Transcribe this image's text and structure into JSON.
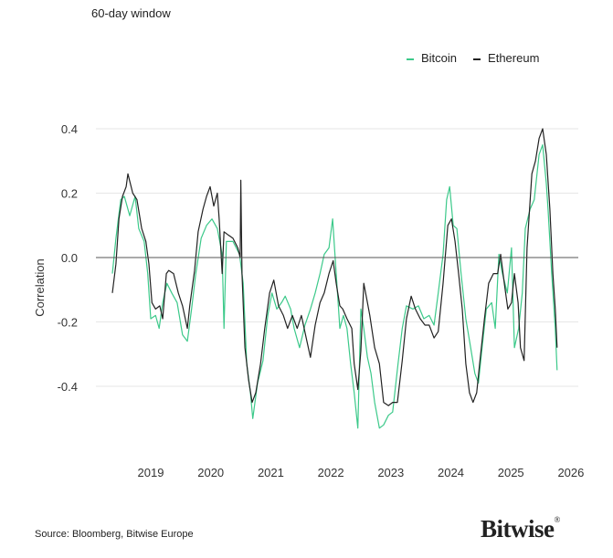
{
  "subtitle": "60-day window",
  "source": "Source: Bloomberg, Bitwise Europe",
  "logo": "Bitwise",
  "chart_data": {
    "type": "line",
    "title": "",
    "xlabel": "",
    "ylabel": "Correlation",
    "xlim": [
      2018.0,
      2026.0
    ],
    "ylim": [
      -0.57,
      0.42
    ],
    "grid": "horizontal",
    "legend_position": "top-right",
    "x_unit": "year",
    "yticks": [
      {
        "v": 0.4,
        "label": "0.4"
      },
      {
        "v": 0.2,
        "label": "0.2"
      },
      {
        "v": 0,
        "label": "0.0"
      },
      {
        "v": -0.2,
        "label": "-0.2"
      },
      {
        "v": -0.4,
        "label": "-0.4"
      }
    ],
    "xticks": [
      {
        "v": 2019,
        "label": "2019"
      },
      {
        "v": 2020,
        "label": "2020"
      },
      {
        "v": 2021,
        "label": "2021"
      },
      {
        "v": 2022,
        "label": "2022"
      },
      {
        "v": 2023,
        "label": "2023"
      },
      {
        "v": 2024,
        "label": "2024"
      },
      {
        "v": 2025,
        "label": "2025"
      },
      {
        "v": 2026,
        "label": "2026"
      }
    ],
    "series": [
      {
        "name": "Bitcoin",
        "color": "#3cc98a",
        "points": [
          [
            2018.36,
            -0.05
          ],
          [
            2018.42,
            0.06
          ],
          [
            2018.5,
            0.18
          ],
          [
            2018.56,
            0.19
          ],
          [
            2018.65,
            0.13
          ],
          [
            2018.74,
            0.19
          ],
          [
            2018.8,
            0.09
          ],
          [
            2018.89,
            0.05
          ],
          [
            2018.95,
            -0.05
          ],
          [
            2019.0,
            -0.19
          ],
          [
            2019.08,
            -0.18
          ],
          [
            2019.14,
            -0.22
          ],
          [
            2019.2,
            -0.14
          ],
          [
            2019.27,
            -0.08
          ],
          [
            2019.35,
            -0.11
          ],
          [
            2019.44,
            -0.14
          ],
          [
            2019.53,
            -0.24
          ],
          [
            2019.61,
            -0.26
          ],
          [
            2019.68,
            -0.16
          ],
          [
            2019.75,
            -0.05
          ],
          [
            2019.84,
            0.06
          ],
          [
            2019.93,
            0.1
          ],
          [
            2020.02,
            0.12
          ],
          [
            2020.11,
            0.09
          ],
          [
            2020.19,
            0.01
          ],
          [
            2020.22,
            -0.22
          ],
          [
            2020.26,
            0.05
          ],
          [
            2020.37,
            0.05
          ],
          [
            2020.48,
            0.01
          ],
          [
            2020.54,
            -0.08
          ],
          [
            2020.6,
            -0.33
          ],
          [
            2020.66,
            -0.42
          ],
          [
            2020.7,
            -0.5
          ],
          [
            2020.78,
            -0.39
          ],
          [
            2020.87,
            -0.32
          ],
          [
            2020.95,
            -0.18
          ],
          [
            2021.02,
            -0.11
          ],
          [
            2021.1,
            -0.16
          ],
          [
            2021.18,
            -0.14
          ],
          [
            2021.24,
            -0.12
          ],
          [
            2021.33,
            -0.16
          ],
          [
            2021.39,
            -0.22
          ],
          [
            2021.48,
            -0.28
          ],
          [
            2021.57,
            -0.21
          ],
          [
            2021.66,
            -0.16
          ],
          [
            2021.74,
            -0.11
          ],
          [
            2021.82,
            -0.05
          ],
          [
            2021.89,
            0.01
          ],
          [
            2021.97,
            0.03
          ],
          [
            2022.03,
            0.12
          ],
          [
            2022.09,
            -0.05
          ],
          [
            2022.15,
            -0.22
          ],
          [
            2022.21,
            -0.18
          ],
          [
            2022.27,
            -0.22
          ],
          [
            2022.33,
            -0.33
          ],
          [
            2022.39,
            -0.42
          ],
          [
            2022.45,
            -0.53
          ],
          [
            2022.5,
            -0.16
          ],
          [
            2022.55,
            -0.22
          ],
          [
            2022.61,
            -0.31
          ],
          [
            2022.67,
            -0.36
          ],
          [
            2022.73,
            -0.45
          ],
          [
            2022.81,
            -0.53
          ],
          [
            2022.88,
            -0.52
          ],
          [
            2022.96,
            -0.49
          ],
          [
            2023.03,
            -0.48
          ],
          [
            2023.12,
            -0.33
          ],
          [
            2023.19,
            -0.22
          ],
          [
            2023.26,
            -0.15
          ],
          [
            2023.37,
            -0.16
          ],
          [
            2023.46,
            -0.15
          ],
          [
            2023.55,
            -0.19
          ],
          [
            2023.64,
            -0.18
          ],
          [
            2023.72,
            -0.21
          ],
          [
            2023.79,
            -0.11
          ],
          [
            2023.87,
            0.01
          ],
          [
            2023.93,
            0.18
          ],
          [
            2023.98,
            0.22
          ],
          [
            2024.04,
            0.1
          ],
          [
            2024.1,
            0.09
          ],
          [
            2024.17,
            -0.05
          ],
          [
            2024.25,
            -0.19
          ],
          [
            2024.33,
            -0.28
          ],
          [
            2024.4,
            -0.36
          ],
          [
            2024.46,
            -0.39
          ],
          [
            2024.52,
            -0.28
          ],
          [
            2024.59,
            -0.16
          ],
          [
            2024.68,
            -0.14
          ],
          [
            2024.74,
            -0.22
          ],
          [
            2024.8,
            0.01
          ],
          [
            2024.86,
            -0.05
          ],
          [
            2024.94,
            -0.11
          ],
          [
            2025.01,
            0.03
          ],
          [
            2025.06,
            -0.28
          ],
          [
            2025.13,
            -0.22
          ],
          [
            2025.19,
            -0.11
          ],
          [
            2025.24,
            0.09
          ],
          [
            2025.32,
            0.15
          ],
          [
            2025.39,
            0.18
          ],
          [
            2025.47,
            0.32
          ],
          [
            2025.53,
            0.35
          ],
          [
            2025.59,
            0.23
          ],
          [
            2025.62,
            0.15
          ],
          [
            2025.68,
            -0.05
          ],
          [
            2025.74,
            -0.22
          ],
          [
            2025.77,
            -0.35
          ]
        ]
      },
      {
        "name": "Ethereum",
        "color": "#222222",
        "points": [
          [
            2018.36,
            -0.11
          ],
          [
            2018.42,
            -0.02
          ],
          [
            2018.47,
            0.12
          ],
          [
            2018.53,
            0.19
          ],
          [
            2018.59,
            0.22
          ],
          [
            2018.62,
            0.26
          ],
          [
            2018.7,
            0.2
          ],
          [
            2018.77,
            0.18
          ],
          [
            2018.85,
            0.09
          ],
          [
            2018.92,
            0.05
          ],
          [
            2018.97,
            -0.02
          ],
          [
            2019.02,
            -0.14
          ],
          [
            2019.08,
            -0.16
          ],
          [
            2019.15,
            -0.15
          ],
          [
            2019.2,
            -0.19
          ],
          [
            2019.26,
            -0.05
          ],
          [
            2019.3,
            -0.04
          ],
          [
            2019.38,
            -0.05
          ],
          [
            2019.46,
            -0.11
          ],
          [
            2019.53,
            -0.15
          ],
          [
            2019.61,
            -0.22
          ],
          [
            2019.65,
            -0.15
          ],
          [
            2019.73,
            -0.04
          ],
          [
            2019.79,
            0.08
          ],
          [
            2019.87,
            0.15
          ],
          [
            2019.93,
            0.19
          ],
          [
            2019.99,
            0.22
          ],
          [
            2020.05,
            0.16
          ],
          [
            2020.11,
            0.2
          ],
          [
            2020.14,
            0.12
          ],
          [
            2020.19,
            -0.05
          ],
          [
            2020.22,
            0.08
          ],
          [
            2020.29,
            0.07
          ],
          [
            2020.37,
            0.06
          ],
          [
            2020.45,
            0.03
          ],
          [
            2020.49,
            0.0
          ],
          [
            2020.5,
            0.24
          ],
          [
            2020.52,
            -0.05
          ],
          [
            2020.57,
            -0.28
          ],
          [
            2020.63,
            -0.38
          ],
          [
            2020.69,
            -0.45
          ],
          [
            2020.75,
            -0.42
          ],
          [
            2020.83,
            -0.33
          ],
          [
            2020.9,
            -0.22
          ],
          [
            2020.98,
            -0.11
          ],
          [
            2021.05,
            -0.07
          ],
          [
            2021.13,
            -0.15
          ],
          [
            2021.21,
            -0.18
          ],
          [
            2021.28,
            -0.22
          ],
          [
            2021.36,
            -0.18
          ],
          [
            2021.44,
            -0.22
          ],
          [
            2021.51,
            -0.18
          ],
          [
            2021.59,
            -0.25
          ],
          [
            2021.66,
            -0.31
          ],
          [
            2021.74,
            -0.21
          ],
          [
            2021.82,
            -0.14
          ],
          [
            2021.89,
            -0.11
          ],
          [
            2021.97,
            -0.05
          ],
          [
            2022.04,
            -0.01
          ],
          [
            2022.09,
            -0.08
          ],
          [
            2022.15,
            -0.15
          ],
          [
            2022.2,
            -0.16
          ],
          [
            2022.27,
            -0.19
          ],
          [
            2022.35,
            -0.22
          ],
          [
            2022.39,
            -0.33
          ],
          [
            2022.45,
            -0.41
          ],
          [
            2022.5,
            -0.29
          ],
          [
            2022.55,
            -0.08
          ],
          [
            2022.61,
            -0.14
          ],
          [
            2022.65,
            -0.18
          ],
          [
            2022.73,
            -0.28
          ],
          [
            2022.81,
            -0.33
          ],
          [
            2022.88,
            -0.45
          ],
          [
            2022.96,
            -0.46
          ],
          [
            2023.03,
            -0.45
          ],
          [
            2023.11,
            -0.45
          ],
          [
            2023.19,
            -0.32
          ],
          [
            2023.26,
            -0.19
          ],
          [
            2023.34,
            -0.12
          ],
          [
            2023.41,
            -0.16
          ],
          [
            2023.49,
            -0.19
          ],
          [
            2023.57,
            -0.21
          ],
          [
            2023.64,
            -0.21
          ],
          [
            2023.72,
            -0.25
          ],
          [
            2023.79,
            -0.23
          ],
          [
            2023.87,
            -0.08
          ],
          [
            2023.95,
            0.1
          ],
          [
            2024.01,
            0.12
          ],
          [
            2024.07,
            0.05
          ],
          [
            2024.13,
            -0.05
          ],
          [
            2024.19,
            -0.16
          ],
          [
            2024.25,
            -0.33
          ],
          [
            2024.31,
            -0.42
          ],
          [
            2024.37,
            -0.45
          ],
          [
            2024.43,
            -0.42
          ],
          [
            2024.48,
            -0.33
          ],
          [
            2024.56,
            -0.19
          ],
          [
            2024.63,
            -0.08
          ],
          [
            2024.71,
            -0.05
          ],
          [
            2024.78,
            -0.05
          ],
          [
            2024.83,
            0.01
          ],
          [
            2024.89,
            -0.08
          ],
          [
            2024.95,
            -0.16
          ],
          [
            2025.01,
            -0.14
          ],
          [
            2025.06,
            -0.05
          ],
          [
            2025.12,
            -0.14
          ],
          [
            2025.16,
            -0.28
          ],
          [
            2025.22,
            -0.32
          ],
          [
            2025.27,
            0.03
          ],
          [
            2025.35,
            0.26
          ],
          [
            2025.41,
            0.3
          ],
          [
            2025.47,
            0.37
          ],
          [
            2025.53,
            0.4
          ],
          [
            2025.59,
            0.32
          ],
          [
            2025.65,
            0.15
          ],
          [
            2025.7,
            -0.05
          ],
          [
            2025.74,
            -0.16
          ],
          [
            2025.77,
            -0.28
          ]
        ]
      }
    ]
  }
}
